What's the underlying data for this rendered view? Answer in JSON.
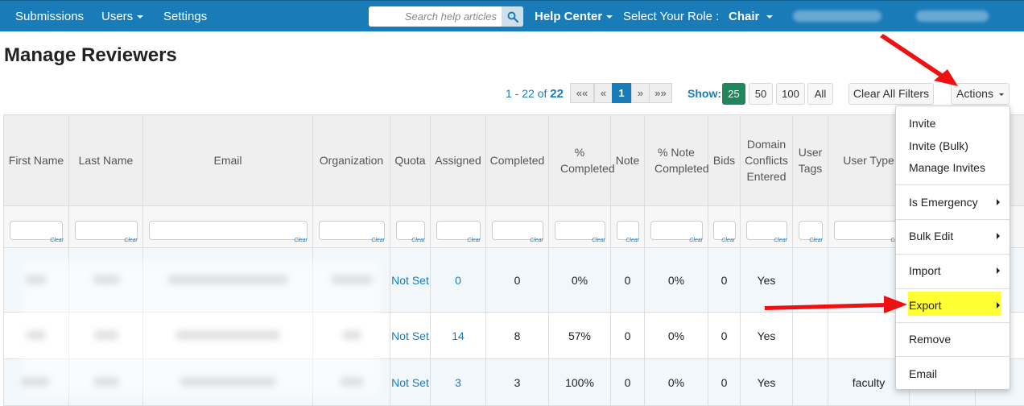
{
  "nav": {
    "submissions": "Submissions",
    "users": "Users",
    "settings": "Settings",
    "search_placeholder": "Search help articles",
    "help_center": "Help Center",
    "select_role": "Select Your Role :",
    "role": "Chair"
  },
  "page": {
    "title": "Manage Reviewers"
  },
  "pagination": {
    "range_prefix": "1 - 22 of",
    "total": "22",
    "first": "««",
    "prev": "«",
    "current": "1",
    "next": "»",
    "last": "»»",
    "show_label": "Show:",
    "sizes": [
      "25",
      "50",
      "100",
      "All"
    ],
    "clear_filters": "Clear All Filters",
    "actions": "Actions"
  },
  "table": {
    "columns": [
      "First Name",
      "Last Name",
      "Email",
      "Organization",
      "Quota",
      "Assigned",
      "Completed",
      "% Completed",
      "Note",
      "% Note Completed",
      "Bids",
      "Domain Conflicts Entered",
      "User Tags",
      "User Type",
      "",
      ""
    ],
    "filter_clear": "Clear",
    "rows": [
      {
        "quota": "Not Set",
        "assigned": "0",
        "completed": "0",
        "pct_completed": "0%",
        "note": "0",
        "pct_note": "0%",
        "bids": "0",
        "conflicts": "Yes",
        "tags": "",
        "user_type": ""
      },
      {
        "quota": "Not Set",
        "assigned": "14",
        "completed": "8",
        "pct_completed": "57%",
        "note": "0",
        "pct_note": "0%",
        "bids": "0",
        "conflicts": "Yes",
        "tags": "",
        "user_type": ""
      },
      {
        "quota": "Not Set",
        "assigned": "3",
        "completed": "3",
        "pct_completed": "100%",
        "note": "0",
        "pct_note": "0%",
        "bids": "0",
        "conflicts": "Yes",
        "tags": "",
        "user_type": "faculty"
      }
    ]
  },
  "actions_menu": {
    "invite": "Invite",
    "invite_bulk": "Invite (Bulk)",
    "manage_invites": "Manage Invites",
    "is_emergency": "Is Emergency",
    "bulk_edit": "Bulk Edit",
    "import": "Import",
    "export": "Export",
    "remove": "Remove",
    "email": "Email"
  },
  "colors": {
    "nav": "#1a7bb9",
    "active_page_size": "#21875a",
    "highlight": "#ffff33",
    "arrow": "#ee1111"
  }
}
